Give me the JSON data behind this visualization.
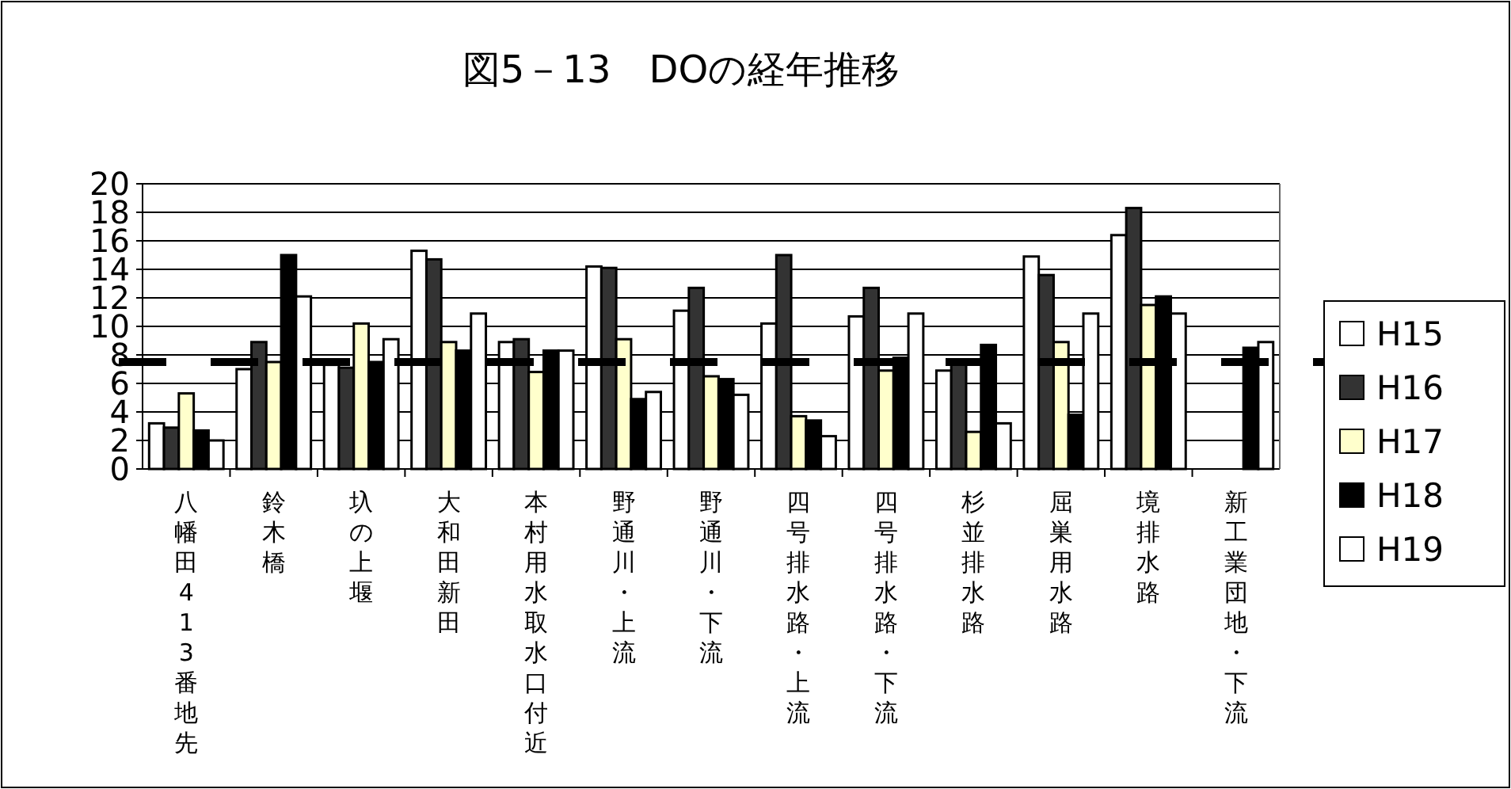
{
  "chart_data": {
    "type": "bar",
    "title": "図5－13　DOの経年推移",
    "categories": [
      "八幡田413番地先",
      "鈴木橋",
      "圦の上堰",
      "大和田新田",
      "本村用水取水口付近",
      "野通川・上流",
      "野通川・下流",
      "四号排水路・上流",
      "四号排水路・下流",
      "杉並排水路",
      "屈巣用水路",
      "境排水路",
      "新工業団地・下流"
    ],
    "series": [
      {
        "name": "H15",
        "color": "#ffffff",
        "values": [
          3.2,
          7.0,
          7.3,
          15.3,
          8.9,
          14.2,
          11.1,
          10.2,
          10.7,
          6.9,
          14.9,
          16.4,
          null
        ]
      },
      {
        "name": "H16",
        "color": "#333333",
        "values": [
          2.9,
          8.9,
          7.1,
          14.7,
          9.1,
          14.1,
          12.7,
          15.0,
          12.7,
          7.6,
          13.6,
          18.3,
          null
        ]
      },
      {
        "name": "H17",
        "color": "#ffffcc",
        "values": [
          5.3,
          7.5,
          10.2,
          8.9,
          6.8,
          9.1,
          6.5,
          3.7,
          6.9,
          2.6,
          8.9,
          11.5,
          null
        ]
      },
      {
        "name": "H18",
        "color": "#000000",
        "values": [
          2.7,
          15.0,
          7.5,
          8.3,
          8.3,
          4.9,
          6.3,
          3.4,
          7.8,
          8.7,
          3.8,
          12.1,
          8.5
        ]
      },
      {
        "name": "H19",
        "color": "#ffffff",
        "values": [
          2.0,
          12.1,
          9.1,
          10.9,
          8.3,
          5.4,
          5.2,
          2.3,
          10.9,
          3.2,
          10.9,
          10.9,
          8.9
        ]
      }
    ],
    "ylim": [
      0,
      20
    ],
    "yticks": [
      0,
      2,
      4,
      6,
      8,
      10,
      12,
      14,
      16,
      18,
      20
    ],
    "grid": "y",
    "legend": "right",
    "ref_lines": [
      {
        "axis": "y",
        "value": 7.5,
        "color": "#000000",
        "line_style": "dashed"
      }
    ]
  }
}
